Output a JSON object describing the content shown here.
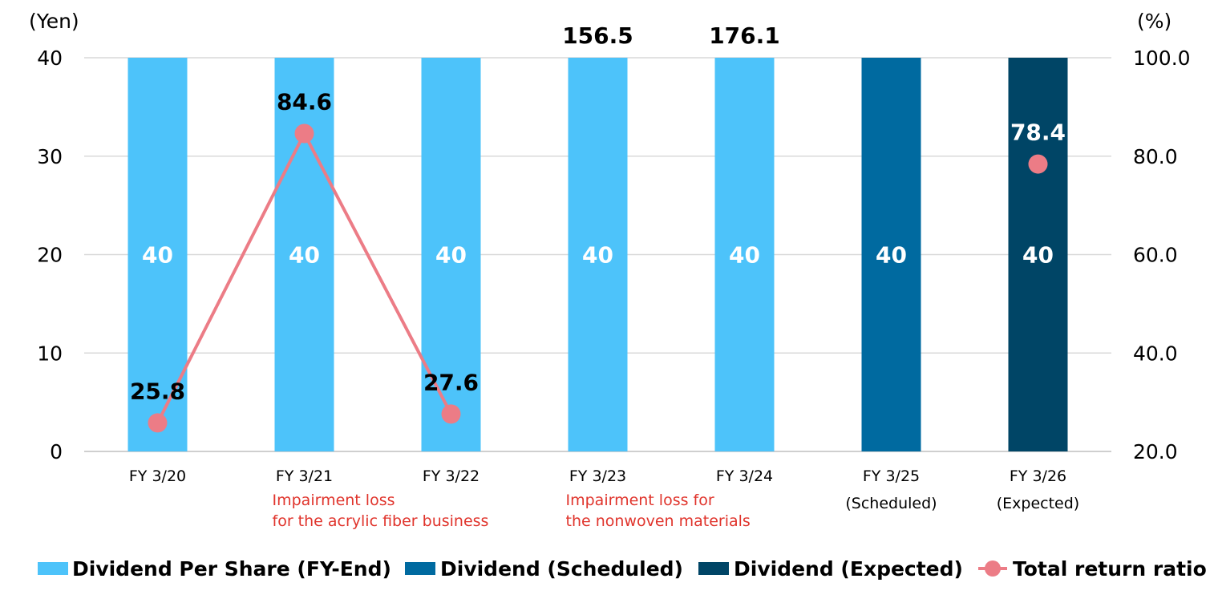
{
  "chart_data": {
    "type": "bar",
    "left_unit": "(Yen)",
    "right_unit": "(%)",
    "y_left": {
      "min": 0,
      "max": 40,
      "ticks": [
        "0",
        "10",
        "20",
        "30",
        "40"
      ]
    },
    "y_right": {
      "min": 20,
      "max": 100,
      "ticks": [
        "20.0",
        "40.0",
        "60.0",
        "80.0",
        "100.0"
      ]
    },
    "categories": [
      "FY 3/20",
      "FY 3/21",
      "FY 3/22",
      "FY 3/23",
      "FY 3/24",
      "FY 3/25",
      "FY 3/26"
    ],
    "category_sublabels": [
      "",
      "",
      "",
      "",
      "",
      "(Scheduled)",
      "(Expected)"
    ],
    "notes": [
      {
        "category": "FY 3/21",
        "lines": [
          "Impairment loss",
          "for the acrylic fiber business"
        ]
      },
      {
        "category": "FY 3/23",
        "lines": [
          "Impairment loss for",
          "the nonwoven materials"
        ]
      }
    ],
    "bars": {
      "values": [
        40,
        40,
        40,
        40,
        40,
        40,
        40
      ],
      "labels": [
        "40",
        "40",
        "40",
        "40",
        "40",
        "40",
        "40"
      ],
      "series_index": [
        0,
        0,
        0,
        0,
        0,
        1,
        2
      ]
    },
    "series": [
      {
        "name": "Dividend Per Share (FY-End)",
        "color": "#4DC3FA",
        "kind": "bar"
      },
      {
        "name": "Dividend (Scheduled)",
        "color": "#006AA0",
        "kind": "bar"
      },
      {
        "name": "Dividend (Expected)",
        "color": "#004566",
        "kind": "bar"
      },
      {
        "name": "Total return ratio",
        "color": "#EC7C86",
        "kind": "line"
      }
    ],
    "total_return_ratio": {
      "values": [
        25.8,
        84.6,
        27.6,
        156.5,
        176.1,
        null,
        78.4
      ],
      "labels": [
        "25.8",
        "84.6",
        "27.6",
        "156.5",
        "176.1",
        "",
        "78.4"
      ],
      "connected_through": 3
    },
    "legend_position": "bottom",
    "grid": true
  }
}
